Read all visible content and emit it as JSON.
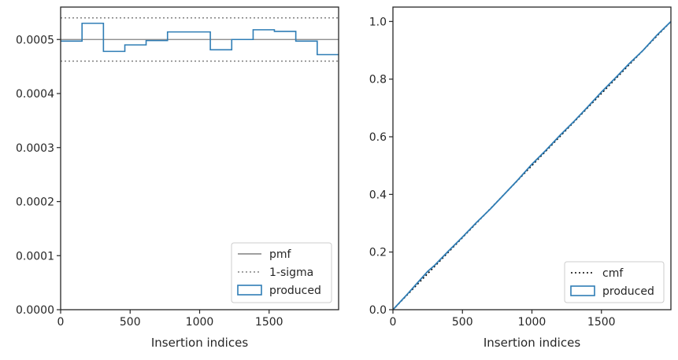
{
  "chart_data": [
    {
      "type": "step",
      "xlabel": "Insertion indices",
      "ylabel": "",
      "xlim": [
        0,
        2000
      ],
      "ylim": [
        0,
        0.00056
      ],
      "xticks": [
        0,
        500,
        1000,
        1500
      ],
      "yticks": [
        0,
        0.0001,
        0.0002,
        0.0003,
        0.0004,
        0.0005
      ],
      "xtick_labels": [
        "0",
        "500",
        "1000",
        "1500"
      ],
      "ytick_labels": [
        "0.0000",
        "0.0001",
        "0.0002",
        "0.0003",
        "0.0004",
        "0.0005"
      ],
      "series": [
        {
          "name": "pmf",
          "kind": "hline",
          "value": 0.0005,
          "color": "#808080",
          "style": "solid"
        },
        {
          "name": "1-sigma",
          "kind": "hlines",
          "values": [
            0.00046,
            0.00054
          ],
          "color": "#808080",
          "style": "dotted"
        },
        {
          "name": "produced",
          "kind": "step-hist",
          "color": "#2f7db5",
          "bin_edges": [
            0,
            154,
            308,
            462,
            615,
            769,
            923,
            1077,
            1231,
            1385,
            1538,
            1692,
            1846,
            2000
          ],
          "values": [
            0.000497,
            0.00053,
            0.000478,
            0.00049,
            0.000498,
            0.000514,
            0.000514,
            0.000481,
            0.0005,
            0.000518,
            0.000515,
            0.000497,
            0.000472
          ]
        }
      ],
      "legend": {
        "placement": "lower-right",
        "entries": [
          "pmf",
          "1-sigma",
          "produced"
        ]
      }
    },
    {
      "type": "line",
      "xlabel": "Insertion indices",
      "ylabel": "",
      "xlim": [
        0,
        2000
      ],
      "ylim": [
        0,
        1.05
      ],
      "xticks": [
        0,
        500,
        1000,
        1500
      ],
      "yticks": [
        0,
        0.2,
        0.4,
        0.6,
        0.8,
        1.0
      ],
      "xtick_labels": [
        "0",
        "500",
        "1000",
        "1500"
      ],
      "ytick_labels": [
        "0.0",
        "0.2",
        "0.4",
        "0.6",
        "0.8",
        "1.0"
      ],
      "series": [
        {
          "name": "cmf",
          "color": "#000000",
          "style": "dotted",
          "x": [
            0,
            2000
          ],
          "y": [
            0,
            1.0
          ]
        },
        {
          "name": "produced",
          "color": "#2f7db5",
          "style": "solid",
          "x": [
            0,
            100,
            200,
            250,
            300,
            400,
            500,
            600,
            700,
            800,
            900,
            1000,
            1100,
            1200,
            1300,
            1400,
            1500,
            1600,
            1700,
            1800,
            1900,
            2000
          ],
          "y": [
            0,
            0.052,
            0.106,
            0.133,
            0.154,
            0.204,
            0.252,
            0.302,
            0.349,
            0.4,
            0.451,
            0.505,
            0.553,
            0.604,
            0.652,
            0.703,
            0.755,
            0.804,
            0.854,
            0.9,
            0.953,
            1.0
          ]
        }
      ],
      "legend": {
        "placement": "lower-right",
        "entries": [
          "cmf",
          "produced"
        ]
      }
    }
  ]
}
